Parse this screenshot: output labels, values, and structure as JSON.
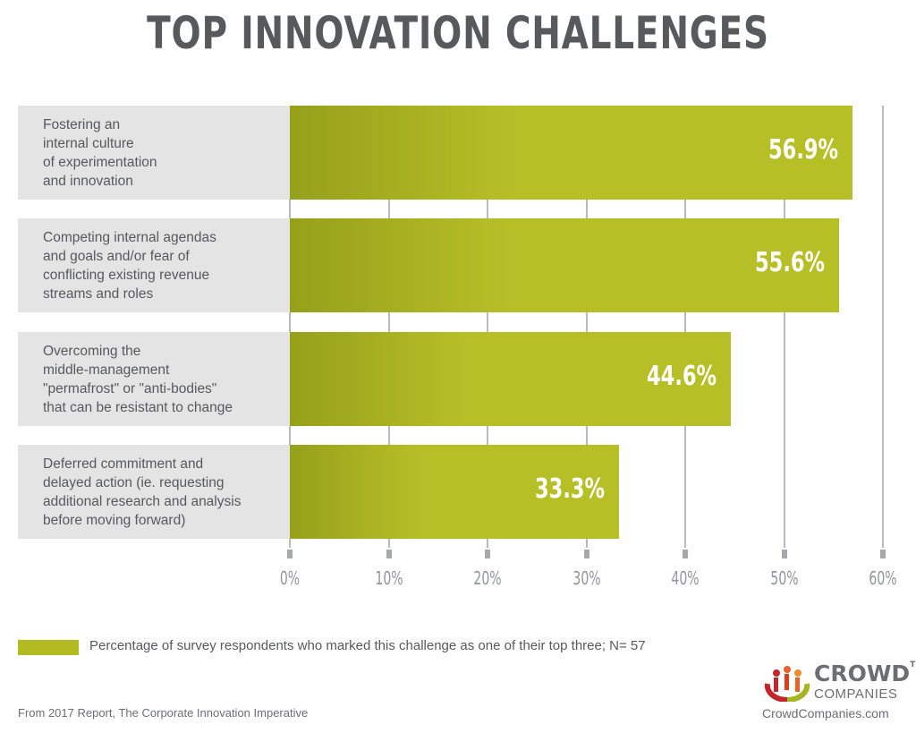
{
  "chart_data": {
    "type": "bar",
    "orientation": "horizontal",
    "title": "TOP INNOVATION CHALLENGES",
    "categories": [
      "Fostering an\ninternal culture\nof experimentation\nand innovation",
      "Competing internal agendas\nand goals and/or fear of\nconflicting existing revenue\nstreams and roles",
      "Overcoming the\nmiddle-management\n\"permafrost\" or \"anti-bodies\"\nthat can be resistant to change",
      "Deferred commitment and\ndelayed action (ie. requesting\nadditional research and analysis\nbefore moving forward)"
    ],
    "values": [
      56.9,
      55.6,
      44.6,
      33.3
    ],
    "data_labels": [
      "56.9%",
      "55.6%",
      "44.6%",
      "33.3%"
    ],
    "xlim": [
      0,
      60
    ],
    "x_ticks": [
      "0%",
      "10%",
      "20%",
      "30%",
      "40%",
      "50%",
      "60%"
    ],
    "grid": true,
    "bar_color": "#b2bb1f",
    "legend": {
      "position": "bottom-left",
      "label": "Percentage of survey respondents who marked this challenge as one of their top three; N= 57"
    }
  },
  "source": "From 2017 Report, The Corporate Innovation Imperative",
  "brand": {
    "name": "CROWD",
    "tm": "TM",
    "sub": "COMPANIES",
    "site": "CrowdCompanies.com"
  }
}
